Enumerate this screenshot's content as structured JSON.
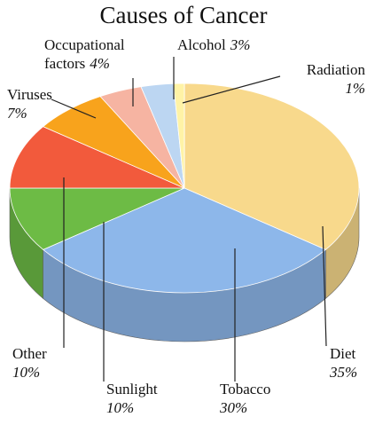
{
  "chart_data": {
    "type": "pie",
    "title": "Causes of Cancer",
    "categories": [
      "Diet",
      "Tobacco",
      "Sunlight",
      "Other",
      "Viruses",
      "Occupational factors",
      "Alcohol",
      "Radiation"
    ],
    "values": [
      35,
      30,
      10,
      10,
      7,
      4,
      3,
      1
    ],
    "value_labels": [
      "35%",
      "30%",
      "10%",
      "10%",
      "7%",
      "4%",
      "3%",
      "1%"
    ],
    "colors": [
      "#f8d98c",
      "#8db7ea",
      "#6dbb45",
      "#f25a3c",
      "#f8a31c",
      "#f6b4a2",
      "#bcd6f2",
      "#fff3a6"
    ]
  }
}
